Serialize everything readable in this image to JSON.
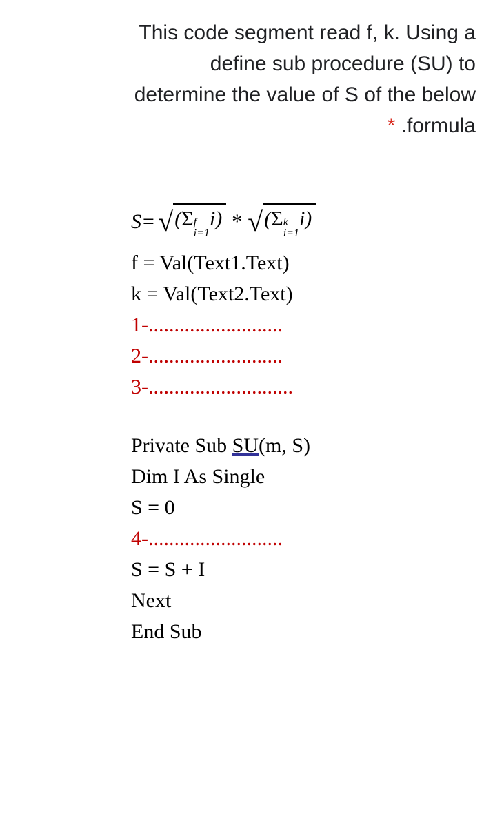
{
  "question": {
    "line1": "This code segment read f, k. Using a",
    "line2": "define sub procedure (SU) to",
    "line3": "determine the value of S of the below",
    "line4_suffix": " .formula",
    "required_mark": "*"
  },
  "formula": {
    "s_label": "S= ",
    "sigma": "Σ",
    "sqrt1_upper": "f",
    "sqrt1_lower": "i=1",
    "sqrt1_var": " i",
    "star": "*",
    "sqrt2_upper": "k",
    "sqrt2_lower": "i=1",
    "sqrt2_var": " i",
    "paren_open": "(",
    "paren_close": ")"
  },
  "code": {
    "line_f": "f = Val(Text1.Text)",
    "line_k": "k = Val(Text2.Text)",
    "blank1": "1-..........................",
    "blank2": "2-..........................",
    "blank3": "3-............................",
    "sub_header_pre": "Private Sub ",
    "sub_header_mid": "SU(",
    "sub_header_post": "m, S)",
    "dim_line": "Dim I As Single",
    "s_zero": "S = 0",
    "blank4": "4-..........................",
    "s_inc": "S = S + I",
    "next_line": "Next",
    "end_sub": "End Sub"
  },
  "colors": {
    "text": "#000000",
    "red": "#c00000",
    "required": "#d93025",
    "question": "#202124",
    "underline": "#333399",
    "background": "#ffffff"
  },
  "fonts": {
    "question_size": 30,
    "code_size": 30,
    "question_family": "Google Sans, Arial",
    "code_family": "Times New Roman"
  }
}
